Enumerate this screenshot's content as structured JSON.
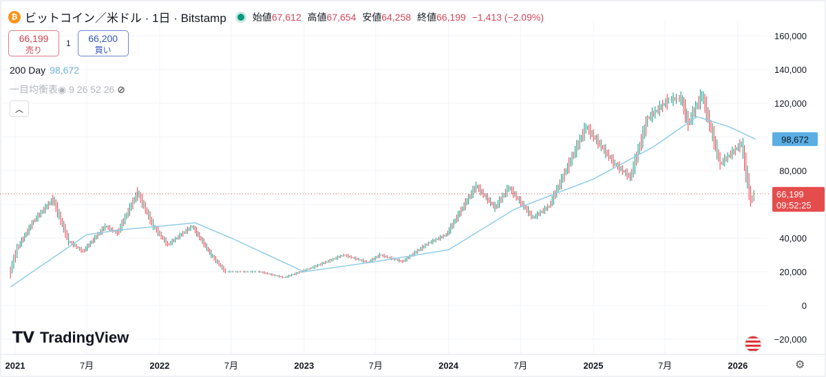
{
  "header": {
    "symbol": "ビットコイン／米ドル · 1日 · Bitstamp",
    "open_label": "始値",
    "open": "67,612",
    "high_label": "高値",
    "high": "67,654",
    "low_label": "安値",
    "low": "64,258",
    "close_label": "終値",
    "close": "66,199",
    "change": "−1,413 (−2.09%)"
  },
  "trade": {
    "sell_price": "66,199",
    "sell_label": "売り",
    "spread": "1",
    "buy_price": "66,200",
    "buy_label": "買い"
  },
  "indicators": {
    "ma_label": "200 Day",
    "ma_value": "98,672",
    "ichimoku": "一目均衡表◉ 9 26 52 26"
  },
  "logo": "TradingView",
  "colors": {
    "up": "#089981",
    "down": "#f23645",
    "ma": "#8fcbe6",
    "price_tag": "#e54c4c",
    "ma_tag": "#5aaee3"
  },
  "chart_data": {
    "type": "candlestick",
    "yticks": [
      160000,
      140000,
      120000,
      100000,
      80000,
      60000,
      40000,
      20000,
      0,
      -20000
    ],
    "ytick_labels": [
      "160,000",
      "140,000",
      "120,000",
      "",
      "80,000",
      "",
      "40,000",
      "20,000",
      "0",
      "−20,000"
    ],
    "ylim": [
      -25000,
      175000
    ],
    "xticks": [
      {
        "date": "2021-01-01",
        "label": "2021"
      },
      {
        "date": "2021-07-01",
        "label": "7月"
      },
      {
        "date": "2022-01-01",
        "label": "2022"
      },
      {
        "date": "2022-07-01",
        "label": "7月"
      },
      {
        "date": "2023-01-01",
        "label": "2023"
      },
      {
        "date": "2023-07-01",
        "label": "7月"
      },
      {
        "date": "2024-01-01",
        "label": "2024"
      },
      {
        "date": "2024-07-01",
        "label": "7月"
      },
      {
        "date": "2025-01-01",
        "label": "2025"
      },
      {
        "date": "2025-07-01",
        "label": "7月"
      },
      {
        "date": "2026-01-01",
        "label": "2026"
      }
    ],
    "price": [
      [
        "2020-12-20",
        18000
      ],
      [
        "2021-01-10",
        34000
      ],
      [
        "2021-02-20",
        50000
      ],
      [
        "2021-04-10",
        63000
      ],
      [
        "2021-05-20",
        38000
      ],
      [
        "2021-06-25",
        32000
      ],
      [
        "2021-08-20",
        47000
      ],
      [
        "2021-09-20",
        43000
      ],
      [
        "2021-11-10",
        67000
      ],
      [
        "2021-12-20",
        47000
      ],
      [
        "2022-01-25",
        36000
      ],
      [
        "2022-03-28",
        47000
      ],
      [
        "2022-05-15",
        30000
      ],
      [
        "2022-06-20",
        20000
      ],
      [
        "2022-09-15",
        20000
      ],
      [
        "2022-11-15",
        16500
      ],
      [
        "2023-01-20",
        22000
      ],
      [
        "2023-04-15",
        30000
      ],
      [
        "2023-06-15",
        25500
      ],
      [
        "2023-07-15",
        30000
      ],
      [
        "2023-09-10",
        26000
      ],
      [
        "2023-11-15",
        37000
      ],
      [
        "2023-12-30",
        42000
      ],
      [
        "2024-03-14",
        71000
      ],
      [
        "2024-05-01",
        58000
      ],
      [
        "2024-06-05",
        70000
      ],
      [
        "2024-08-05",
        52000
      ],
      [
        "2024-09-15",
        59000
      ],
      [
        "2024-11-12",
        88000
      ],
      [
        "2024-12-17",
        106000
      ],
      [
        "2025-02-28",
        84000
      ],
      [
        "2025-04-08",
        76000
      ],
      [
        "2025-05-22",
        111000
      ],
      [
        "2025-07-14",
        122000
      ],
      [
        "2025-08-14",
        123000
      ],
      [
        "2025-09-01",
        108000
      ],
      [
        "2025-10-06",
        125000
      ],
      [
        "2025-11-21",
        84000
      ],
      [
        "2026-01-14",
        96000
      ],
      [
        "2026-02-06",
        62000
      ],
      [
        "2026-02-15",
        66199
      ]
    ],
    "ma200": [
      [
        "2020-12-20",
        11000
      ],
      [
        "2021-07-01",
        42000
      ],
      [
        "2021-10-01",
        45000
      ],
      [
        "2022-04-01",
        49000
      ],
      [
        "2022-07-01",
        40000
      ],
      [
        "2023-01-01",
        20000
      ],
      [
        "2023-07-01",
        26000
      ],
      [
        "2024-01-01",
        33000
      ],
      [
        "2024-06-15",
        57000
      ],
      [
        "2025-01-01",
        75000
      ],
      [
        "2025-06-01",
        94000
      ],
      [
        "2025-09-20",
        112000
      ],
      [
        "2025-12-10",
        106000
      ],
      [
        "2026-02-15",
        98672
      ]
    ],
    "last_price_label": "66,199",
    "countdown": "09:52:25",
    "ma_tag_label": "98,672"
  }
}
